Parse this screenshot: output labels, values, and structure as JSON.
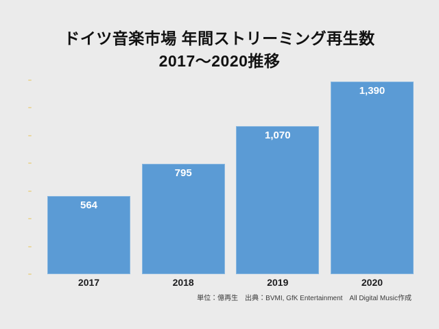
{
  "title": {
    "line1": "ドイツ音楽市場 年間ストリーミング再生数",
    "line2": "2017〜2020推移"
  },
  "footer": "単位：億再生　出典：BVMI, GfK Entertainment　All Digital Music作成",
  "chart_data": {
    "type": "bar",
    "title": "ドイツ音楽市場 年間ストリーミング再生数 2017〜2020推移",
    "categories": [
      "2017",
      "2018",
      "2019",
      "2020"
    ],
    "values": [
      564,
      795,
      1070,
      1390
    ],
    "value_labels": [
      "564",
      "795",
      "1,070",
      "1,390"
    ],
    "xlabel": "",
    "ylabel": "",
    "unit": "億再生",
    "ylim": [
      0,
      1400
    ],
    "ytick_interval": 200,
    "grid": false,
    "legend": false,
    "colors": {
      "bar": "#5b9bd5",
      "value_label": "#ffffff",
      "background": "#ebebeb",
      "title_text": "#111111",
      "axis_label_text": "#1c1c1e",
      "y_tick_dash": "#e9d7a0"
    }
  }
}
